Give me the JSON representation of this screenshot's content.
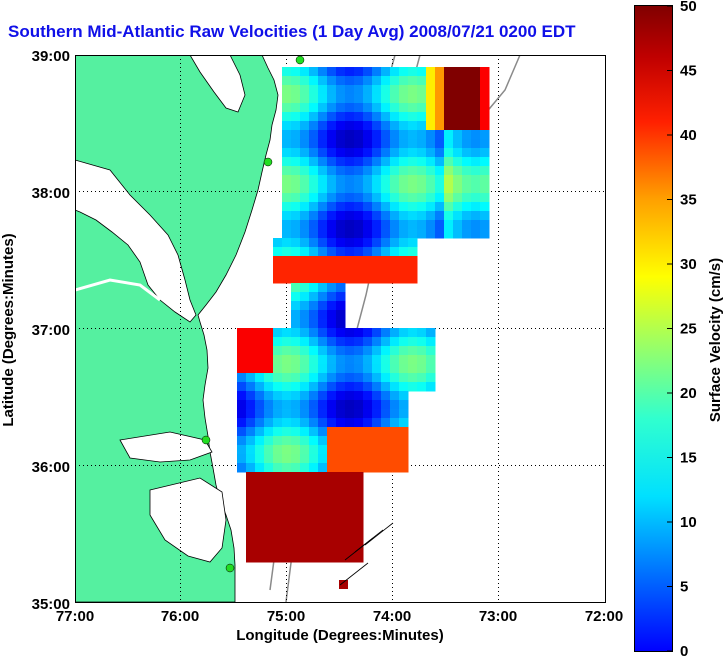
{
  "title": "Southern Mid-Atlantic Raw Velocities (1 Day Avg) 2008/07/21 0200 EDT",
  "x_axis": {
    "label": "Longitude (Degrees:Minutes)",
    "ticks": [
      "77:00",
      "76:00",
      "75:00",
      "74:00",
      "73:00",
      "72:00"
    ]
  },
  "y_axis": {
    "label": "Latitude (Degrees:Minutes)",
    "ticks": [
      "39:00",
      "38:00",
      "37:00",
      "36:00",
      "35:00"
    ]
  },
  "colorbar": {
    "label": "Surface Velocity (cm/s)",
    "min": 0,
    "max": 50,
    "ticks": [
      "50",
      "45",
      "40",
      "35",
      "30",
      "25",
      "20",
      "15",
      "10",
      "5",
      "0"
    ]
  },
  "colors": {
    "land": "#55f0a0",
    "title": "#1010e8",
    "coast": "#000000",
    "bathymetry": "#8a8a8a",
    "station": "#22dd22",
    "vector": "#000000"
  },
  "grid": "dotted",
  "stations": 4
}
